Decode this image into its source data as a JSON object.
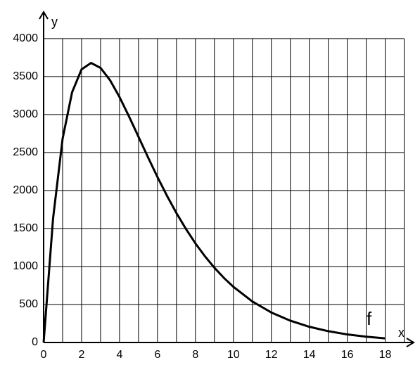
{
  "chart_data": {
    "type": "line",
    "x": [
      0,
      0.5,
      1,
      1.5,
      2,
      2.5,
      3,
      3.5,
      4,
      4.5,
      5,
      5.5,
      6,
      6.5,
      7,
      7.5,
      8,
      8.5,
      9,
      9.5,
      10,
      11,
      12,
      13,
      14,
      15,
      16,
      17,
      18
    ],
    "series": [
      {
        "name": "f",
        "color": "#000000",
        "values": [
          0,
          1637,
          2681,
          3293,
          3595,
          3679,
          3614,
          3452,
          3230,
          2975,
          2707,
          2438,
          2177,
          1931,
          1703,
          1494,
          1304,
          1135,
          984,
          850,
          733,
          540,
          395,
          287,
          207,
          149,
          106,
          76,
          54
        ]
      }
    ],
    "xlabel": "x",
    "ylabel": "y",
    "xlim": [
      0,
      19.5
    ],
    "ylim": [
      0,
      4350
    ],
    "xticks": [
      0,
      2,
      4,
      6,
      8,
      10,
      12,
      14,
      16,
      18
    ],
    "x_minor_grid": [
      1,
      3,
      5,
      7,
      9,
      11,
      13,
      15,
      17,
      19
    ],
    "yticks": [
      0,
      500,
      1000,
      1500,
      2000,
      2500,
      3000,
      3500,
      4000
    ],
    "grid": true
  }
}
